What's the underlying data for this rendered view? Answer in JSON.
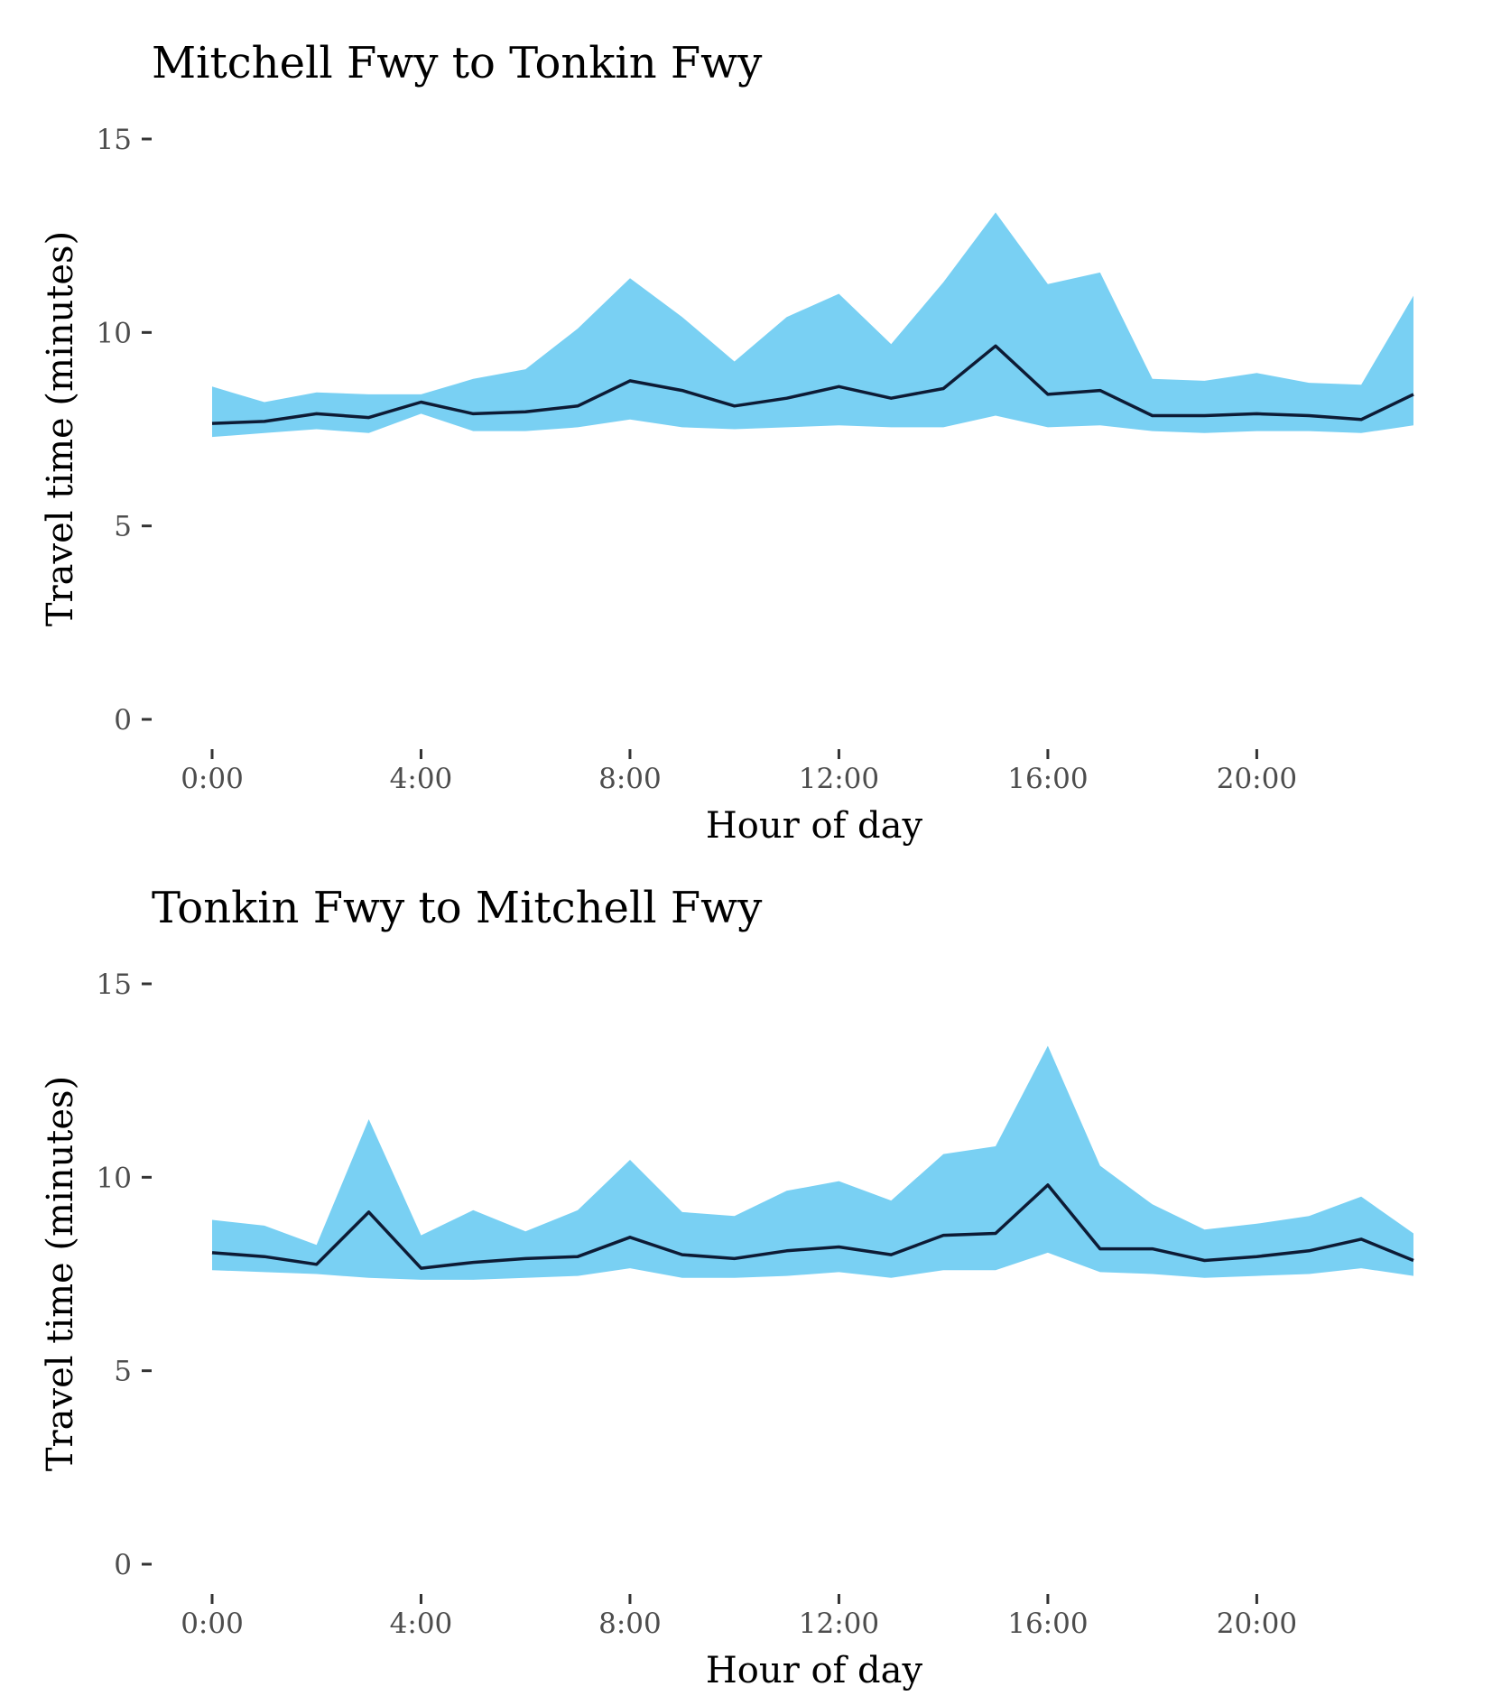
{
  "colors": {
    "band": "#79d0f3",
    "line": "#0d1b35",
    "tick_text": "#4d4d4d"
  },
  "chart_data": [
    {
      "type": "area",
      "title": "Mitchell Fwy to Tonkin Fwy",
      "xlabel": "Hour of day",
      "ylabel": "Travel time (minutes)",
      "xlim": [
        0,
        23
      ],
      "ylim": [
        0,
        15
      ],
      "x_ticks": [
        0,
        4,
        8,
        12,
        16,
        20
      ],
      "x_tick_labels": [
        "0:00",
        "4:00",
        "8:00",
        "12:00",
        "16:00",
        "20:00"
      ],
      "y_ticks": [
        0,
        5,
        10,
        15
      ],
      "y_tick_labels": [
        "0",
        "5",
        "10",
        "15"
      ],
      "grid": false,
      "x": [
        0,
        1,
        2,
        3,
        4,
        5,
        6,
        7,
        8,
        9,
        10,
        11,
        12,
        13,
        14,
        15,
        16,
        17,
        18,
        19,
        20,
        21,
        22,
        23
      ],
      "series": [
        {
          "role": "range",
          "lower": [
            7.3,
            7.4,
            7.5,
            7.4,
            7.9,
            7.45,
            7.45,
            7.55,
            7.75,
            7.55,
            7.5,
            7.55,
            7.6,
            7.55,
            7.55,
            7.85,
            7.55,
            7.6,
            7.45,
            7.4,
            7.45,
            7.45,
            7.4,
            7.6
          ],
          "upper": [
            8.6,
            8.2,
            8.45,
            8.4,
            8.4,
            8.8,
            9.05,
            10.1,
            11.4,
            10.4,
            9.25,
            10.4,
            11.0,
            9.7,
            11.3,
            13.1,
            11.25,
            11.55,
            8.8,
            8.75,
            8.95,
            8.7,
            8.65,
            10.95
          ]
        },
        {
          "role": "median",
          "values": [
            7.65,
            7.7,
            7.9,
            7.8,
            8.2,
            7.9,
            7.95,
            8.1,
            8.75,
            8.5,
            8.1,
            8.3,
            8.6,
            8.3,
            8.55,
            9.65,
            8.4,
            8.5,
            7.85,
            7.85,
            7.9,
            7.85,
            7.75,
            8.4
          ]
        }
      ]
    },
    {
      "type": "area",
      "title": "Tonkin Fwy to Mitchell Fwy",
      "xlabel": "Hour of day",
      "ylabel": "Travel time (minutes)",
      "xlim": [
        0,
        23
      ],
      "ylim": [
        0,
        15
      ],
      "x_ticks": [
        0,
        4,
        8,
        12,
        16,
        20
      ],
      "x_tick_labels": [
        "0:00",
        "4:00",
        "8:00",
        "12:00",
        "16:00",
        "20:00"
      ],
      "y_ticks": [
        0,
        5,
        10,
        15
      ],
      "y_tick_labels": [
        "0",
        "5",
        "10",
        "15"
      ],
      "grid": false,
      "x": [
        0,
        1,
        2,
        3,
        4,
        5,
        6,
        7,
        8,
        9,
        10,
        11,
        12,
        13,
        14,
        15,
        16,
        17,
        18,
        19,
        20,
        21,
        22,
        23
      ],
      "series": [
        {
          "role": "range",
          "lower": [
            7.6,
            7.55,
            7.5,
            7.4,
            7.35,
            7.35,
            7.4,
            7.45,
            7.65,
            7.4,
            7.4,
            7.45,
            7.55,
            7.4,
            7.6,
            7.6,
            8.05,
            7.55,
            7.5,
            7.4,
            7.45,
            7.5,
            7.65,
            7.45
          ],
          "upper": [
            8.9,
            8.75,
            8.25,
            11.5,
            8.5,
            9.15,
            8.6,
            9.15,
            10.45,
            9.1,
            9.0,
            9.65,
            9.9,
            9.4,
            10.6,
            10.8,
            13.4,
            10.3,
            9.3,
            8.65,
            8.8,
            9.0,
            9.5,
            8.55
          ]
        },
        {
          "role": "median",
          "values": [
            8.05,
            7.95,
            7.75,
            9.1,
            7.65,
            7.8,
            7.9,
            7.95,
            8.45,
            8.0,
            7.9,
            8.1,
            8.2,
            8.0,
            8.5,
            8.55,
            9.8,
            8.15,
            8.15,
            7.85,
            7.95,
            8.1,
            8.4,
            7.85
          ]
        }
      ]
    }
  ]
}
